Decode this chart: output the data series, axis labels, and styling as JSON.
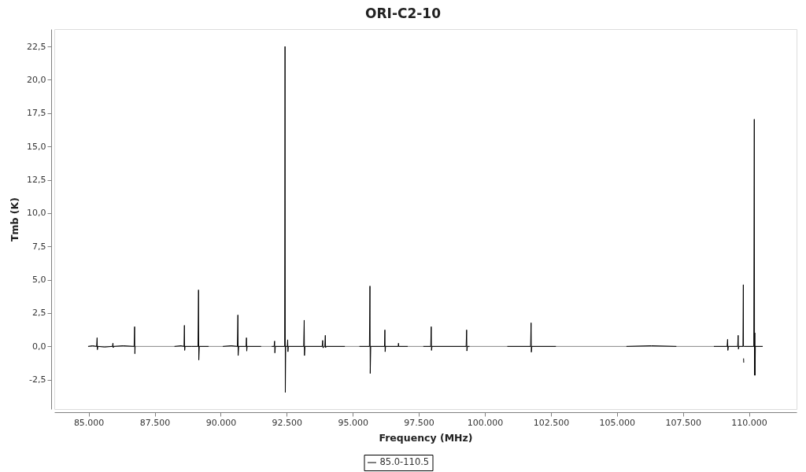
{
  "chart_data": {
    "type": "line",
    "title": "ORI-C2-10",
    "xlabel": "Frequency (MHz)",
    "ylabel": "Tmb (K)",
    "x": [
      84980,
      85150,
      85300,
      85320,
      85330,
      85350,
      85600,
      85900,
      85920,
      85930,
      85950,
      86300,
      86720,
      86740,
      86750,
      86760,
      87500,
      88250,
      88500,
      88610,
      88625,
      88635,
      88650,
      88900,
      89140,
      89160,
      89170,
      89190,
      89540,
      89800,
      90080,
      90400,
      90630,
      90650,
      90660,
      90680,
      90960,
      90975,
      90985,
      91000,
      91530,
      91750,
      91930,
      92020,
      92040,
      92050,
      92070,
      92420,
      92435,
      92445,
      92460,
      92520,
      92535,
      92545,
      92560,
      93140,
      93160,
      93170,
      93190,
      93840,
      93860,
      93870,
      93940,
      93960,
      93970,
      93990,
      94700,
      95000,
      95250,
      95630,
      95650,
      95660,
      95680,
      96200,
      96215,
      96225,
      96240,
      96720,
      96730,
      96740,
      97080,
      97400,
      97670,
      97950,
      97970,
      97980,
      98000,
      99290,
      99310,
      99320,
      99340,
      99420,
      100200,
      100850,
      101730,
      101750,
      101760,
      101780,
      102690,
      104000,
      105360,
      106300,
      107250,
      108000,
      108670,
      109170,
      109190,
      109200,
      109220,
      109570,
      109590,
      109600,
      109620,
      109770,
      109785,
      109790,
      109793,
      109795,
      109800,
      109805,
      109810,
      110180,
      110200,
      110210,
      110220,
      110230,
      110240,
      110520
    ],
    "series": [
      {
        "name": "85.0-110.5",
        "color": "#000000",
        "values": [
          0,
          0.05,
          0,
          0.65,
          -0.25,
          0,
          -0.05,
          0,
          0.25,
          -0.1,
          0,
          0.05,
          0,
          1.48,
          -0.55,
          0,
          null,
          0,
          0.05,
          0,
          1.58,
          -0.3,
          0,
          0,
          0,
          4.24,
          -1.02,
          0,
          0,
          null,
          0,
          0.05,
          0,
          2.36,
          -0.69,
          0,
          0,
          0.65,
          -0.35,
          0,
          0,
          null,
          0,
          0,
          0.4,
          -0.49,
          0,
          0,
          22.5,
          -3.45,
          0,
          0,
          0.5,
          -0.4,
          0,
          0,
          1.97,
          -0.69,
          0,
          0,
          0.45,
          -0.1,
          0,
          0.83,
          -0.1,
          0,
          0,
          null,
          0,
          0,
          4.53,
          -2.03,
          0,
          0,
          1.24,
          -0.4,
          0,
          0,
          0.24,
          0,
          0,
          null,
          0,
          0,
          1.48,
          -0.3,
          0,
          0,
          1.24,
          -0.34,
          0,
          0,
          null,
          0,
          0,
          1.77,
          -0.43,
          0,
          0,
          null,
          0,
          0.05,
          0,
          null,
          0,
          0,
          0.53,
          -0.3,
          0,
          0,
          0.83,
          -0.2,
          0,
          0,
          4.63,
          0,
          null,
          -0.9,
          -1.22,
          null,
          0,
          0,
          17.04,
          -2.17,
          1.02,
          -2.17,
          0,
          0
        ]
      }
    ],
    "xlim": [
      83700,
      111800
    ],
    "ylim": [
      -4.7,
      23.8
    ],
    "xticks": [
      {
        "value": 85000,
        "label": "85.000"
      },
      {
        "value": 87500,
        "label": "87.500"
      },
      {
        "value": 90000,
        "label": "90.000"
      },
      {
        "value": 92500,
        "label": "92.500"
      },
      {
        "value": 95000,
        "label": "95.000"
      },
      {
        "value": 97500,
        "label": "97.500"
      },
      {
        "value": 100000,
        "label": "100.000"
      },
      {
        "value": 102500,
        "label": "102.500"
      },
      {
        "value": 105000,
        "label": "105.000"
      },
      {
        "value": 107500,
        "label": "107.500"
      },
      {
        "value": 110000,
        "label": "110.000"
      }
    ],
    "yticks": [
      {
        "value": -2.5,
        "label": "-2,5"
      },
      {
        "value": 0,
        "label": "0,0"
      },
      {
        "value": 2.5,
        "label": "2,5"
      },
      {
        "value": 5,
        "label": "5,0"
      },
      {
        "value": 7.5,
        "label": "7,5"
      },
      {
        "value": 10,
        "label": "10,0"
      },
      {
        "value": 12.5,
        "label": "12,5"
      },
      {
        "value": 15,
        "label": "15,0"
      },
      {
        "value": 17.5,
        "label": "17,5"
      },
      {
        "value": 20,
        "label": "20,0"
      },
      {
        "value": 22.5,
        "label": "22,5"
      }
    ],
    "ref_lines": [
      {
        "axis": "y",
        "value": 0,
        "color": "#808080"
      }
    ],
    "legend": "bottom",
    "grid": false
  }
}
